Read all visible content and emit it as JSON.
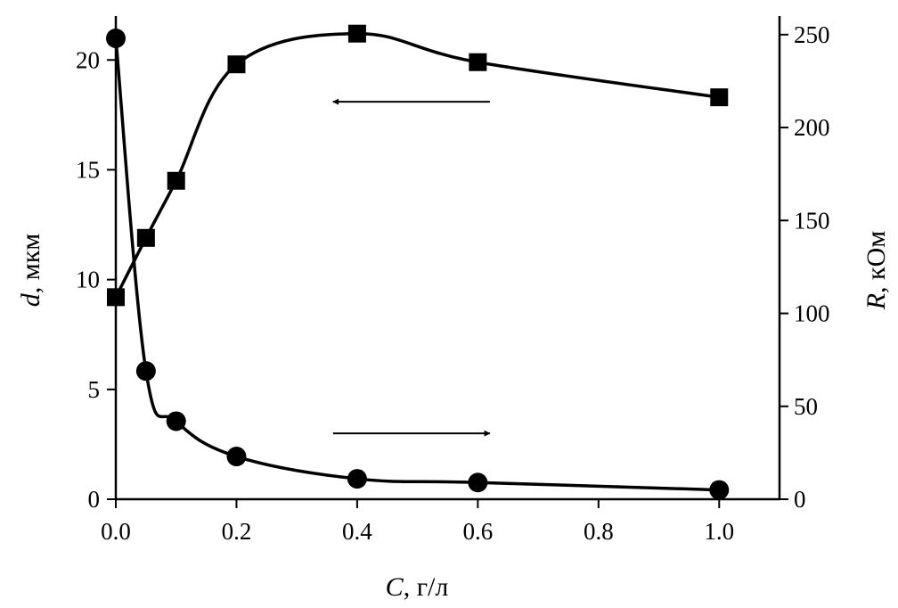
{
  "chart_data": {
    "type": "line",
    "xlabel": {
      "var": "C",
      "unit": ", г/л"
    },
    "ylabel_left": {
      "var": "d",
      "unit": ", мкм"
    },
    "ylabel_right": {
      "var": "R",
      "unit": ", кОм"
    },
    "xlim": [
      0,
      1.1
    ],
    "ylim_left": [
      0,
      22
    ],
    "ylim_right": [
      0,
      260
    ],
    "x_ticks": [
      0,
      0.2,
      0.4,
      0.6,
      0.8,
      1.0
    ],
    "x_tick_labels": [
      "0.0",
      "0.2",
      "0.4",
      "0.6",
      "0.8",
      "1.0"
    ],
    "y_left_ticks": [
      0,
      5,
      10,
      15,
      20
    ],
    "y_left_tick_labels": [
      "0",
      "5",
      "10",
      "15",
      "20"
    ],
    "y_right_ticks": [
      0,
      50,
      100,
      150,
      200,
      250
    ],
    "y_right_tick_labels": [
      "0",
      "50",
      "100",
      "150",
      "200",
      "250"
    ],
    "grid": false,
    "legend": "none",
    "series": [
      {
        "marker": "square",
        "axis": "left",
        "x": [
          0,
          0.05,
          0.1,
          0.2,
          0.4,
          0.6,
          1.0
        ],
        "y": [
          9.2,
          11.9,
          14.5,
          19.8,
          21.2,
          19.9,
          18.3
        ]
      },
      {
        "marker": "circle",
        "axis": "right",
        "x": [
          0,
          0.05,
          0.1,
          0.2,
          0.4,
          0.6,
          1.0
        ],
        "y": [
          248,
          69,
          42,
          23,
          11,
          9,
          5
        ]
      }
    ],
    "annotations": [
      {
        "type": "arrow",
        "direction": "left",
        "points_to_axis": "left",
        "x_from": 0.62,
        "x_to": 0.36,
        "y": 18.1,
        "y_axis": "left"
      },
      {
        "type": "arrow",
        "direction": "right",
        "points_to_axis": "right",
        "x_from": 0.36,
        "x_to": 0.62,
        "y": 3.0,
        "y_axis": "left"
      }
    ],
    "colors": {
      "line": "#000000",
      "marker": "#000000",
      "axis": "#000000"
    }
  }
}
